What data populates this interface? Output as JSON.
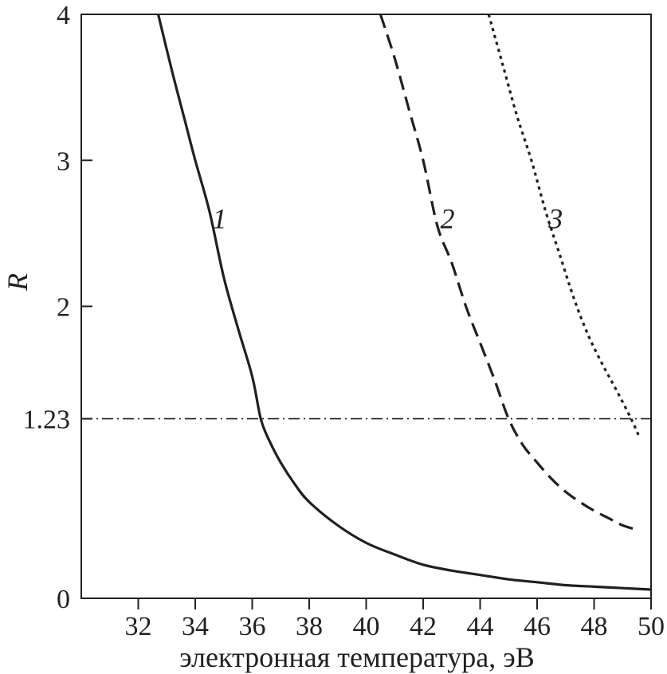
{
  "chart_data": {
    "type": "line",
    "xlabel": "электронная температура, эВ",
    "ylabel": "R",
    "xlim": [
      30,
      50
    ],
    "ylim": [
      0,
      4
    ],
    "x_ticks": [
      {
        "value": 32,
        "label": "32"
      },
      {
        "value": 34,
        "label": "34"
      },
      {
        "value": 36,
        "label": "36"
      },
      {
        "value": 38,
        "label": "38"
      },
      {
        "value": 40,
        "label": "40"
      },
      {
        "value": 42,
        "label": "42"
      },
      {
        "value": 44,
        "label": "44"
      },
      {
        "value": 46,
        "label": "46"
      },
      {
        "value": 48,
        "label": "48"
      },
      {
        "value": 50,
        "label": "50"
      }
    ],
    "y_ticks": [
      {
        "value": 0,
        "label": "0"
      },
      {
        "value": 1.23,
        "label": "1.23"
      },
      {
        "value": 2,
        "label": "2"
      },
      {
        "value": 3,
        "label": "3"
      },
      {
        "value": 4,
        "label": "4"
      }
    ],
    "grid": false,
    "reference_line": {
      "y": 1.23,
      "style": "dash-dot"
    },
    "series": [
      {
        "name": "1",
        "style": "solid",
        "label_at": [
          34.6,
          2.6
        ],
        "x": [
          32.7,
          33.2,
          33.6,
          34.0,
          34.5,
          35.0,
          35.5,
          36.0,
          36.3,
          36.6,
          37.0,
          37.5,
          38.0,
          39.0,
          40.0,
          41.0,
          42.0,
          43.0,
          44.0,
          45.0,
          46.0,
          47.0,
          48.0,
          49.0,
          50.0
        ],
        "y": [
          4.0,
          3.6,
          3.3,
          3.0,
          2.65,
          2.2,
          1.85,
          1.52,
          1.23,
          1.08,
          0.93,
          0.78,
          0.66,
          0.5,
          0.38,
          0.3,
          0.23,
          0.19,
          0.16,
          0.13,
          0.11,
          0.09,
          0.08,
          0.07,
          0.06
        ]
      },
      {
        "name": "2",
        "style": "dashed",
        "label_at": [
          42.6,
          2.6
        ],
        "x": [
          40.5,
          41.0,
          41.5,
          42.0,
          42.5,
          43.0,
          43.5,
          44.0,
          44.5,
          45.0,
          45.5,
          46.0,
          46.5,
          47.0,
          47.5,
          48.0,
          48.5,
          49.0,
          49.5
        ],
        "y": [
          4.0,
          3.7,
          3.35,
          3.0,
          2.55,
          2.3,
          2.0,
          1.75,
          1.5,
          1.23,
          1.05,
          0.93,
          0.82,
          0.73,
          0.66,
          0.6,
          0.55,
          0.5,
          0.47
        ]
      },
      {
        "name": "3",
        "style": "dotted",
        "label_at": [
          46.4,
          2.6
        ],
        "x": [
          44.3,
          44.8,
          45.3,
          45.8,
          46.3,
          46.8,
          47.3,
          47.8,
          48.3,
          48.8,
          49.3,
          49.6
        ],
        "y": [
          4.0,
          3.65,
          3.3,
          3.0,
          2.65,
          2.35,
          2.05,
          1.8,
          1.6,
          1.42,
          1.23,
          1.1
        ]
      }
    ]
  },
  "colors": {
    "line": "#231f20",
    "background": "#ffffff"
  }
}
